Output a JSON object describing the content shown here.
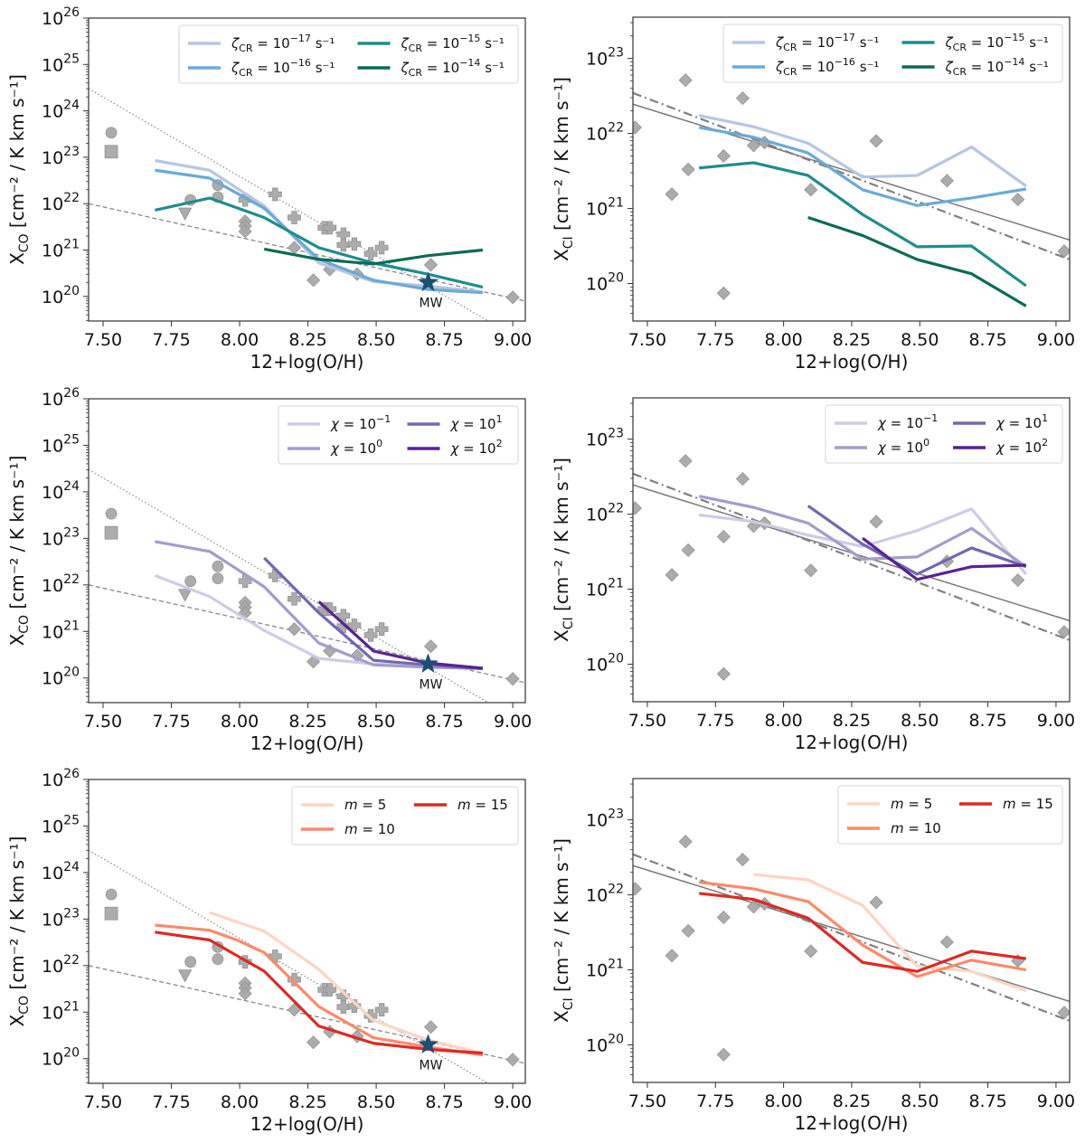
{
  "chart_data": [
    {
      "id": "co-zeta",
      "type": "line",
      "quantity": "XCO",
      "xlabel": "12+log(O/H)",
      "ylabel_main": "X",
      "ylabel_sub": "CO",
      "ylabel_units": " [cm⁻² / K km s⁻¹]",
      "xlim": [
        7.447,
        9.046
      ],
      "ylim_log10": [
        19.47,
        26.0
      ],
      "yscale": "log",
      "xticks": [
        "7.50",
        "7.75",
        "8.00",
        "8.25",
        "8.50",
        "8.75",
        "9.00"
      ],
      "yticks_exp": [
        "20",
        "21",
        "22",
        "23",
        "24",
        "25",
        "26"
      ],
      "legend": {
        "placement": "top-right",
        "ncol": 2
      },
      "series": [
        {
          "name": "ζCR = 10^-17 s^-1",
          "label_base": "ζ",
          "label_sub": "CR",
          "label_eq": " = 10",
          "label_exp": "−17",
          "label_unit": " s⁻¹",
          "color": "#b6c7e0",
          "x": [
            7.69,
            7.89,
            8.09,
            8.29,
            8.49,
            8.69,
            8.89
          ],
          "log10_y": [
            22.93,
            22.72,
            21.95,
            20.72,
            20.32,
            20.22,
            20.1
          ]
        },
        {
          "name": "ζCR = 10^-16 s^-1",
          "label_base": "ζ",
          "label_sub": "CR",
          "label_eq": " = 10",
          "label_exp": "−16",
          "label_unit": " s⁻¹",
          "color": "#6aaad6",
          "x": [
            7.69,
            7.89,
            8.09,
            8.29,
            8.49,
            8.69,
            8.89
          ],
          "log10_y": [
            22.72,
            22.55,
            21.9,
            20.8,
            20.35,
            20.15,
            20.08
          ]
        },
        {
          "name": "ζCR = 10^-15 s^-1",
          "label_base": "ζ",
          "label_sub": "CR",
          "label_eq": " = 10",
          "label_exp": "−15",
          "label_unit": " s⁻¹",
          "color": "#1f8c8c",
          "x": [
            7.69,
            7.89,
            8.09,
            8.29,
            8.49,
            8.69,
            8.89
          ],
          "log10_y": [
            21.86,
            22.12,
            21.7,
            21.05,
            20.72,
            20.48,
            20.2
          ]
        },
        {
          "name": "ζCR = 10^-14 s^-1",
          "label_base": "ζ",
          "label_sub": "CR",
          "label_eq": " = 10",
          "label_exp": "−14",
          "label_unit": " s⁻¹",
          "color": "#0b6b55",
          "x": [
            8.09,
            8.29,
            8.49,
            8.69,
            8.89
          ],
          "log10_y": [
            21.02,
            20.8,
            20.7,
            20.88,
            21.0
          ]
        }
      ]
    },
    {
      "id": "ci-zeta",
      "type": "line",
      "quantity": "XCI",
      "xlabel": "12+log(O/H)",
      "ylabel_main": "X",
      "ylabel_sub": "CI",
      "ylabel_units": " [cm⁻² / K km s⁻¹]",
      "xlim": [
        7.447,
        9.05
      ],
      "ylim_log10": [
        19.5,
        23.55
      ],
      "yscale": "log",
      "xticks": [
        "7.50",
        "7.75",
        "8.00",
        "8.25",
        "8.50",
        "8.75",
        "9.00"
      ],
      "yticks_exp": [
        "20",
        "21",
        "22",
        "23"
      ],
      "legend": {
        "placement": "top-right",
        "ncol": 2
      },
      "series": [
        {
          "name": "ζCR = 10^-17 s^-1",
          "label_base": "ζ",
          "label_sub": "CR",
          "label_eq": " = 10",
          "label_exp": "−17",
          "label_unit": " s⁻¹",
          "color": "#b6c7e0",
          "x": [
            7.69,
            7.89,
            8.09,
            8.29,
            8.49,
            8.69,
            8.89
          ],
          "log10_y": [
            22.24,
            22.09,
            21.87,
            21.42,
            21.44,
            21.82,
            21.3
          ]
        },
        {
          "name": "ζCR = 10^-16 s^-1",
          "label_base": "ζ",
          "label_sub": "CR",
          "label_eq": " = 10",
          "label_exp": "−16",
          "label_unit": " s⁻¹",
          "color": "#6aaad6",
          "x": [
            7.69,
            7.89,
            8.09,
            8.29,
            8.49,
            8.69,
            8.89
          ],
          "log10_y": [
            22.08,
            21.95,
            21.74,
            21.25,
            21.04,
            21.14,
            21.26
          ]
        },
        {
          "name": "ζCR = 10^-15 s^-1",
          "label_base": "ζ",
          "label_sub": "CR",
          "label_eq": " = 10",
          "label_exp": "−15",
          "label_unit": " s⁻¹",
          "color": "#1f8c8c",
          "x": [
            7.69,
            7.89,
            8.09,
            8.29,
            8.49,
            8.69,
            8.89
          ],
          "log10_y": [
            21.54,
            21.61,
            21.44,
            20.92,
            20.49,
            20.5,
            19.97
          ]
        },
        {
          "name": "ζCR = 10^-14 s^-1",
          "label_base": "ζ",
          "label_sub": "CR",
          "label_eq": " = 10",
          "label_exp": "−14",
          "label_unit": " s⁻¹",
          "color": "#0b6b55",
          "x": [
            8.09,
            8.29,
            8.49,
            8.69,
            8.89
          ],
          "log10_y": [
            20.88,
            20.64,
            20.32,
            20.13,
            19.7
          ]
        }
      ]
    },
    {
      "id": "co-chi",
      "type": "line",
      "quantity": "XCO",
      "xlabel": "12+log(O/H)",
      "ylabel_main": "X",
      "ylabel_sub": "CO",
      "ylabel_units": " [cm⁻² / K km s⁻¹]",
      "xlim": [
        7.447,
        9.046
      ],
      "ylim_log10": [
        19.47,
        26.0
      ],
      "yscale": "log",
      "xticks": [
        "7.50",
        "7.75",
        "8.00",
        "8.25",
        "8.50",
        "8.75",
        "9.00"
      ],
      "yticks_exp": [
        "20",
        "21",
        "22",
        "23",
        "24",
        "25",
        "26"
      ],
      "legend": {
        "placement": "top-right",
        "ncol": 2
      },
      "series": [
        {
          "name": "χ = 10^-1",
          "label_base": "χ",
          "label_sub": "",
          "label_eq": " = 10",
          "label_exp": "−1",
          "label_unit": "",
          "color": "#cfcbe5",
          "x": [
            7.69,
            7.89,
            8.09,
            8.29,
            8.49,
            8.69,
            8.89
          ],
          "log10_y": [
            22.2,
            21.75,
            21.02,
            20.42,
            20.3,
            20.26,
            20.22
          ]
        },
        {
          "name": "χ = 10^0",
          "label_base": "χ",
          "label_sub": "",
          "label_eq": " = 10",
          "label_exp": "0",
          "label_unit": "",
          "color": "#a39dcb",
          "x": [
            7.69,
            7.89,
            8.09,
            8.29,
            8.49,
            8.69,
            8.89
          ],
          "log10_y": [
            22.93,
            22.72,
            21.96,
            20.75,
            20.28,
            20.23,
            20.2
          ]
        },
        {
          "name": "χ = 10^1",
          "label_base": "χ",
          "label_sub": "",
          "label_eq": " = 10",
          "label_exp": "1",
          "label_unit": "",
          "color": "#7566b0",
          "x": [
            8.09,
            8.29,
            8.49,
            8.69,
            8.89
          ],
          "log10_y": [
            22.58,
            21.4,
            20.38,
            20.28,
            20.2
          ]
        },
        {
          "name": "χ = 10^2",
          "label_base": "χ",
          "label_sub": "",
          "label_eq": " = 10",
          "label_exp": "2",
          "label_unit": "",
          "color": "#56238f",
          "x": [
            8.29,
            8.49,
            8.69,
            8.89
          ],
          "log10_y": [
            21.64,
            20.58,
            20.32,
            20.21
          ]
        }
      ]
    },
    {
      "id": "ci-chi",
      "type": "line",
      "quantity": "XCI",
      "xlabel": "12+log(O/H)",
      "ylabel_main": "X",
      "ylabel_sub": "CI",
      "ylabel_units": " [cm⁻² / K km s⁻¹]",
      "xlim": [
        7.447,
        9.05
      ],
      "ylim_log10": [
        19.5,
        23.55
      ],
      "yscale": "log",
      "xticks": [
        "7.50",
        "7.75",
        "8.00",
        "8.25",
        "8.50",
        "8.75",
        "9.00"
      ],
      "yticks_exp": [
        "20",
        "21",
        "22",
        "23"
      ],
      "legend": {
        "placement": "top-right",
        "ncol": 2
      },
      "series": [
        {
          "name": "χ = 10^-1",
          "label_base": "χ",
          "label_sub": "",
          "label_eq": " = 10",
          "label_exp": "−1",
          "label_unit": "",
          "color": "#cfcbe5",
          "x": [
            7.69,
            7.89,
            8.09,
            8.29,
            8.49,
            8.69,
            8.89
          ],
          "log10_y": [
            21.99,
            21.9,
            21.72,
            21.57,
            21.78,
            22.07,
            21.2
          ]
        },
        {
          "name": "χ = 10^0",
          "label_base": "χ",
          "label_sub": "",
          "label_eq": " = 10",
          "label_exp": "0",
          "label_unit": "",
          "color": "#a39dcb",
          "x": [
            7.69,
            7.89,
            8.09,
            8.29,
            8.49,
            8.69,
            8.89
          ],
          "log10_y": [
            22.24,
            22.09,
            21.88,
            21.4,
            21.43,
            21.81,
            21.3
          ]
        },
        {
          "name": "χ = 10^1",
          "label_base": "χ",
          "label_sub": "",
          "label_eq": " = 10",
          "label_exp": "1",
          "label_unit": "",
          "color": "#7566b0",
          "x": [
            8.09,
            8.29,
            8.49,
            8.69,
            8.89
          ],
          "log10_y": [
            22.11,
            21.6,
            21.2,
            21.55,
            21.3
          ]
        },
        {
          "name": "χ = 10^2",
          "label_base": "χ",
          "label_sub": "",
          "label_eq": " = 10",
          "label_exp": "2",
          "label_unit": "",
          "color": "#56238f",
          "x": [
            8.29,
            8.49,
            8.69,
            8.89
          ],
          "log10_y": [
            21.68,
            21.13,
            21.3,
            21.32
          ]
        }
      ]
    },
    {
      "id": "co-m",
      "type": "line",
      "quantity": "XCO",
      "xlabel": "12+log(O/H)",
      "ylabel_main": "X",
      "ylabel_sub": "CO",
      "ylabel_units": " [cm⁻² / K km s⁻¹]",
      "xlim": [
        7.447,
        9.046
      ],
      "ylim_log10": [
        19.47,
        26.0
      ],
      "yscale": "log",
      "xticks": [
        "7.50",
        "7.75",
        "8.00",
        "8.25",
        "8.50",
        "8.75",
        "9.00"
      ],
      "yticks_exp": [
        "20",
        "21",
        "22",
        "23",
        "24",
        "25",
        "26"
      ],
      "legend": {
        "placement": "top-right",
        "ncol": 2
      },
      "series": [
        {
          "name": "m = 5",
          "label_base": "m",
          "label_sub": "",
          "label_eq": " = 5",
          "label_exp": "",
          "label_unit": "",
          "color": "#fdd5c4",
          "x": [
            7.89,
            8.09,
            8.29,
            8.49,
            8.69,
            8.89
          ],
          "log10_y": [
            23.14,
            22.74,
            21.92,
            20.82,
            20.4,
            20.12
          ]
        },
        {
          "name": "m = 10",
          "label_base": "m",
          "label_sub": "",
          "label_eq": " = 10",
          "label_exp": "",
          "label_unit": "",
          "color": "#fb8a6a",
          "x": [
            7.69,
            7.89,
            7.99,
            8.09,
            8.29,
            8.49,
            8.69,
            8.89
          ],
          "log10_y": [
            22.87,
            22.76,
            22.55,
            22.28,
            21.12,
            20.45,
            20.25,
            20.08
          ]
        },
        {
          "name": "m = 15",
          "label_base": "m",
          "label_sub": "",
          "label_eq": " = 15",
          "label_exp": "",
          "label_unit": "",
          "color": "#dc2a25",
          "x": [
            7.69,
            7.89,
            8.09,
            8.29,
            8.49,
            8.69,
            8.89
          ],
          "log10_y": [
            22.72,
            22.55,
            21.88,
            20.7,
            20.33,
            20.2,
            20.12
          ]
        }
      ]
    },
    {
      "id": "ci-m",
      "type": "line",
      "quantity": "XCI",
      "xlabel": "12+log(O/H)",
      "ylabel_main": "X",
      "ylabel_sub": "CI",
      "ylabel_units": " [cm⁻² / K km s⁻¹]",
      "xlim": [
        7.447,
        9.05
      ],
      "ylim_log10": [
        19.5,
        23.55
      ],
      "yscale": "log",
      "xticks": [
        "7.50",
        "7.75",
        "8.00",
        "8.25",
        "8.50",
        "8.75",
        "9.00"
      ],
      "yticks_exp": [
        "20",
        "21",
        "22",
        "23"
      ],
      "legend": {
        "placement": "top-right",
        "ncol": 2
      },
      "series": [
        {
          "name": "m = 5",
          "label_base": "m",
          "label_sub": "",
          "label_eq": " = 5",
          "label_exp": "",
          "label_unit": "",
          "color": "#fdd5c4",
          "x": [
            7.89,
            8.09,
            8.29,
            8.49,
            8.69,
            8.89
          ],
          "log10_y": [
            22.27,
            22.2,
            21.86,
            21.05,
            20.98,
            20.72
          ]
        },
        {
          "name": "m = 10",
          "label_base": "m",
          "label_sub": "",
          "label_eq": " = 10",
          "label_exp": "",
          "label_unit": "",
          "color": "#fb8a6a",
          "x": [
            7.69,
            7.89,
            8.09,
            8.29,
            8.49,
            8.69,
            8.89
          ],
          "log10_y": [
            22.17,
            22.08,
            21.91,
            21.33,
            20.91,
            21.13,
            21.0
          ]
        },
        {
          "name": "m = 15",
          "label_base": "m",
          "label_sub": "",
          "label_eq": " = 15",
          "label_exp": "",
          "label_unit": "",
          "color": "#dc2a25",
          "x": [
            7.69,
            7.89,
            8.09,
            8.29,
            8.49,
            8.69,
            8.89
          ],
          "log10_y": [
            22.02,
            21.94,
            21.69,
            21.1,
            20.98,
            21.25,
            21.15
          ]
        }
      ]
    }
  ],
  "co_observations": {
    "color": "#a8a8a8",
    "points": [
      {
        "marker": "circle",
        "x": 7.53,
        "log10_y": 23.53
      },
      {
        "marker": "square",
        "x": 7.53,
        "log10_y": 23.12
      },
      {
        "marker": "circle",
        "x": 7.82,
        "log10_y": 22.08
      },
      {
        "marker": "triangle-down",
        "x": 7.8,
        "log10_y": 21.79
      },
      {
        "marker": "circle",
        "x": 7.92,
        "log10_y": 22.4
      },
      {
        "marker": "circle",
        "x": 7.92,
        "log10_y": 22.14
      },
      {
        "marker": "plus",
        "x": 8.02,
        "log10_y": 22.08
      },
      {
        "marker": "diamond",
        "x": 8.02,
        "log10_y": 21.62
      },
      {
        "marker": "diamond",
        "x": 8.02,
        "log10_y": 21.52
      },
      {
        "marker": "diamond",
        "x": 8.02,
        "log10_y": 21.4
      },
      {
        "marker": "plus",
        "x": 8.13,
        "log10_y": 22.2
      },
      {
        "marker": "plus",
        "x": 8.2,
        "log10_y": 21.7
      },
      {
        "marker": "diamond",
        "x": 8.2,
        "log10_y": 21.05
      },
      {
        "marker": "diamond",
        "x": 8.27,
        "log10_y": 20.35
      },
      {
        "marker": "plus",
        "x": 8.31,
        "log10_y": 21.48
      },
      {
        "marker": "plus",
        "x": 8.33,
        "log10_y": 21.48
      },
      {
        "marker": "diamond",
        "x": 8.33,
        "log10_y": 20.58
      },
      {
        "marker": "plus",
        "x": 8.38,
        "log10_y": 21.34
      },
      {
        "marker": "plus",
        "x": 8.38,
        "log10_y": 21.11
      },
      {
        "marker": "plus",
        "x": 8.42,
        "log10_y": 21.13
      },
      {
        "marker": "diamond",
        "x": 8.43,
        "log10_y": 20.48
      },
      {
        "marker": "plus",
        "x": 8.48,
        "log10_y": 20.92
      },
      {
        "marker": "plus",
        "x": 8.52,
        "log10_y": 21.05
      },
      {
        "marker": "diamond",
        "x": 8.7,
        "log10_y": 20.68
      },
      {
        "marker": "diamond",
        "x": 9.0,
        "log10_y": 19.98
      }
    ],
    "mw": {
      "label": "MW",
      "x": 8.69,
      "log10_y": 20.3,
      "color": "#1d4e74"
    },
    "dotted_fit": {
      "x": [
        7.447,
        8.91
      ],
      "log10_y": [
        24.48,
        19.47
      ]
    },
    "dashed_fit": {
      "x": [
        7.447,
        9.046
      ],
      "log10_y": [
        22.0,
        19.9
      ]
    }
  },
  "ci_observations": {
    "color": "#a8a8a8",
    "points": [
      {
        "marker": "diamond",
        "x": 7.455,
        "log10_y": 22.08
      },
      {
        "marker": "diamond",
        "x": 7.64,
        "log10_y": 22.71
      },
      {
        "marker": "diamond",
        "x": 7.85,
        "log10_y": 22.47
      },
      {
        "marker": "diamond",
        "x": 7.65,
        "log10_y": 21.52
      },
      {
        "marker": "diamond",
        "x": 7.59,
        "log10_y": 21.19
      },
      {
        "marker": "diamond",
        "x": 7.78,
        "log10_y": 21.7
      },
      {
        "marker": "diamond",
        "x": 7.78,
        "log10_y": 19.87
      },
      {
        "marker": "diamond",
        "x": 7.89,
        "log10_y": 21.84
      },
      {
        "marker": "diamond",
        "x": 7.93,
        "log10_y": 21.88
      },
      {
        "marker": "diamond",
        "x": 8.1,
        "log10_y": 21.25
      },
      {
        "marker": "diamond",
        "x": 8.34,
        "log10_y": 21.9
      },
      {
        "marker": "diamond",
        "x": 8.6,
        "log10_y": 21.37
      },
      {
        "marker": "diamond",
        "x": 8.86,
        "log10_y": 21.12
      },
      {
        "marker": "diamond",
        "x": 9.03,
        "log10_y": 20.43
      }
    ],
    "solid_fit": {
      "x": [
        7.447,
        9.05
      ],
      "log10_y": [
        22.39,
        20.58
      ]
    },
    "dashdot_fit": {
      "x": [
        7.447,
        9.05
      ],
      "log10_y": [
        22.54,
        20.32
      ]
    }
  }
}
